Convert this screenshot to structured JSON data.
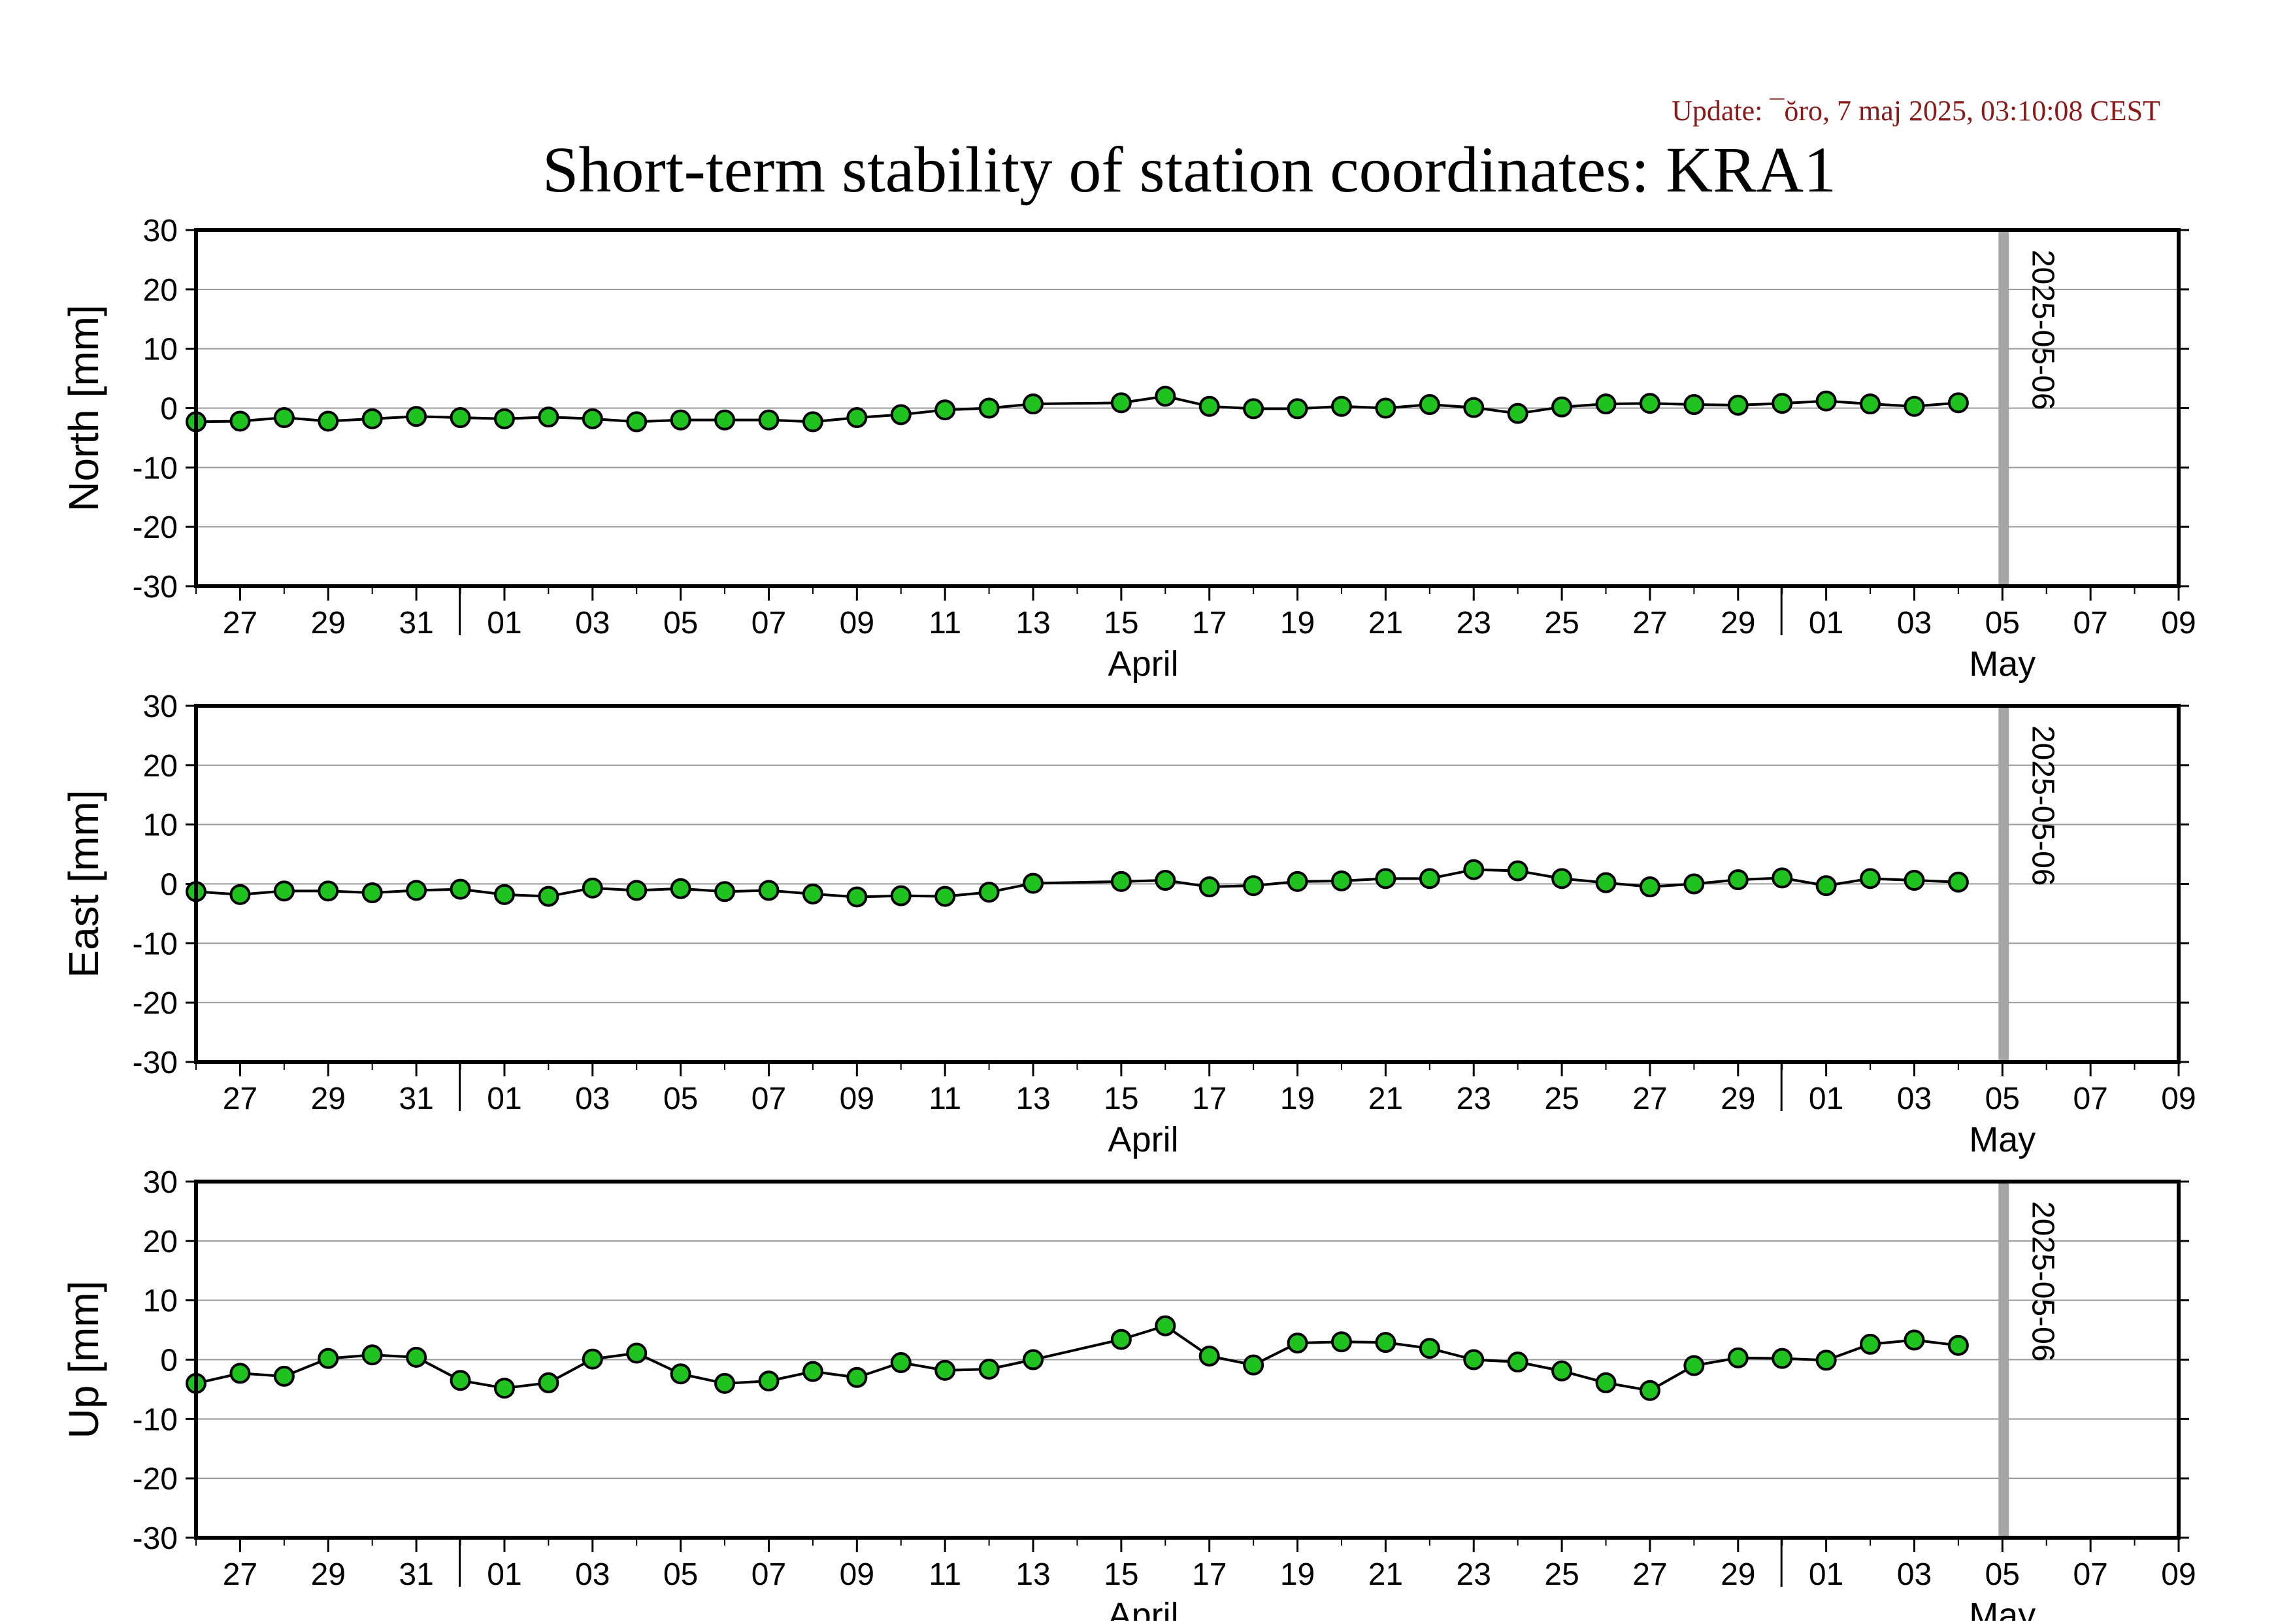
{
  "update_text": "Update: ¯ŏro, 7 maj 2025, 03:10:08 CEST",
  "title": "Short-term stability of station coordinates: KRA1",
  "colors": {
    "marker_fill": "#1fc21f",
    "marker_edge": "#000000",
    "line": "#000000",
    "gridline": "#999999",
    "current_day_bar": "#a6a6a6",
    "update_text": "#8b1a1a"
  },
  "chart_data": [
    {
      "type": "line",
      "ylabel": "North [mm]",
      "ylim": [
        -30,
        30
      ],
      "yticks": [
        30,
        20,
        10,
        0,
        -10,
        -20,
        -30
      ],
      "xlim": [
        "2025-03-26",
        "2025-05-10"
      ],
      "xtick_labels": [
        "27",
        "29",
        "31",
        "01",
        "03",
        "05",
        "07",
        "09",
        "11",
        "13",
        "15",
        "17",
        "19",
        "21",
        "23",
        "25",
        "27",
        "29",
        "01",
        "03",
        "05",
        "07",
        "09"
      ],
      "month_labels": [
        "April",
        "May"
      ],
      "grid": true,
      "marker_line": {
        "date": "2025-05-06",
        "label": "2025-05-06"
      },
      "x": [
        "2025-03-26",
        "2025-03-27",
        "2025-03-28",
        "2025-03-29",
        "2025-03-30",
        "2025-03-31",
        "2025-04-01",
        "2025-04-02",
        "2025-04-03",
        "2025-04-04",
        "2025-04-05",
        "2025-04-06",
        "2025-04-07",
        "2025-04-08",
        "2025-04-09",
        "2025-04-10",
        "2025-04-11",
        "2025-04-12",
        "2025-04-13",
        "2025-04-14",
        "2025-04-16",
        "2025-04-17",
        "2025-04-18",
        "2025-04-19",
        "2025-04-20",
        "2025-04-21",
        "2025-04-22",
        "2025-04-23",
        "2025-04-24",
        "2025-04-25",
        "2025-04-26",
        "2025-04-27",
        "2025-04-28",
        "2025-04-29",
        "2025-04-30",
        "2025-05-01",
        "2025-05-02",
        "2025-05-03",
        "2025-05-04",
        "2025-05-05"
      ],
      "values": [
        -2.3,
        -2.2,
        -1.6,
        -2.2,
        -1.8,
        -1.4,
        -1.6,
        -1.8,
        -1.5,
        -1.8,
        -2.3,
        -2.0,
        -2.0,
        -2.0,
        -2.3,
        -1.6,
        -1.1,
        -0.3,
        0.0,
        0.7,
        0.9,
        2.0,
        0.3,
        -0.1,
        -0.1,
        0.3,
        0.0,
        0.6,
        0.1,
        -0.9,
        0.2,
        0.7,
        0.8,
        0.6,
        0.5,
        0.8,
        1.2,
        0.7,
        0.3,
        0.9
      ]
    },
    {
      "type": "line",
      "ylabel": "East [mm]",
      "ylim": [
        -30,
        30
      ],
      "yticks": [
        30,
        20,
        10,
        0,
        -10,
        -20,
        -30
      ],
      "xlim": [
        "2025-03-26",
        "2025-05-10"
      ],
      "xtick_labels": [
        "27",
        "29",
        "31",
        "01",
        "03",
        "05",
        "07",
        "09",
        "11",
        "13",
        "15",
        "17",
        "19",
        "21",
        "23",
        "25",
        "27",
        "29",
        "01",
        "03",
        "05",
        "07",
        "09"
      ],
      "month_labels": [
        "April",
        "May"
      ],
      "grid": true,
      "marker_line": {
        "date": "2025-05-06",
        "label": "2025-05-06"
      },
      "x": [
        "2025-03-26",
        "2025-03-27",
        "2025-03-28",
        "2025-03-29",
        "2025-03-30",
        "2025-03-31",
        "2025-04-01",
        "2025-04-02",
        "2025-04-03",
        "2025-04-04",
        "2025-04-05",
        "2025-04-06",
        "2025-04-07",
        "2025-04-08",
        "2025-04-09",
        "2025-04-10",
        "2025-04-11",
        "2025-04-12",
        "2025-04-13",
        "2025-04-14",
        "2025-04-16",
        "2025-04-17",
        "2025-04-18",
        "2025-04-19",
        "2025-04-20",
        "2025-04-21",
        "2025-04-22",
        "2025-04-23",
        "2025-04-24",
        "2025-04-25",
        "2025-04-26",
        "2025-04-27",
        "2025-04-28",
        "2025-04-29",
        "2025-04-30",
        "2025-05-01",
        "2025-05-02",
        "2025-05-03",
        "2025-05-04",
        "2025-05-05"
      ],
      "values": [
        -1.3,
        -1.8,
        -1.2,
        -1.2,
        -1.5,
        -1.1,
        -0.9,
        -1.8,
        -2.1,
        -0.7,
        -1.1,
        -0.8,
        -1.3,
        -1.1,
        -1.7,
        -2.2,
        -2.0,
        -2.1,
        -1.4,
        0.1,
        0.4,
        0.6,
        -0.5,
        -0.3,
        0.4,
        0.5,
        0.9,
        0.9,
        2.4,
        2.2,
        0.9,
        0.2,
        -0.5,
        0.0,
        0.7,
        1.0,
        -0.3,
        0.9,
        0.6,
        0.3
      ]
    },
    {
      "type": "line",
      "ylabel": "Up [mm]",
      "ylim": [
        -30,
        30
      ],
      "yticks": [
        30,
        20,
        10,
        0,
        -10,
        -20,
        -30
      ],
      "xlim": [
        "2025-03-26",
        "2025-05-10"
      ],
      "xtick_labels": [
        "27",
        "29",
        "31",
        "01",
        "03",
        "05",
        "07",
        "09",
        "11",
        "13",
        "15",
        "17",
        "19",
        "21",
        "23",
        "25",
        "27",
        "29",
        "01",
        "03",
        "05",
        "07",
        "09"
      ],
      "month_labels": [
        "April",
        "May"
      ],
      "grid": true,
      "marker_line": {
        "date": "2025-05-06",
        "label": "2025-05-06"
      },
      "x": [
        "2025-03-26",
        "2025-03-27",
        "2025-03-28",
        "2025-03-29",
        "2025-03-30",
        "2025-03-31",
        "2025-04-01",
        "2025-04-02",
        "2025-04-03",
        "2025-04-04",
        "2025-04-05",
        "2025-04-06",
        "2025-04-07",
        "2025-04-08",
        "2025-04-09",
        "2025-04-10",
        "2025-04-11",
        "2025-04-12",
        "2025-04-13",
        "2025-04-14",
        "2025-04-16",
        "2025-04-17",
        "2025-04-18",
        "2025-04-19",
        "2025-04-20",
        "2025-04-21",
        "2025-04-22",
        "2025-04-23",
        "2025-04-24",
        "2025-04-25",
        "2025-04-26",
        "2025-04-27",
        "2025-04-28",
        "2025-04-29",
        "2025-04-30",
        "2025-05-01",
        "2025-05-02",
        "2025-05-03",
        "2025-05-04",
        "2025-05-05"
      ],
      "values": [
        -4.0,
        -2.3,
        -2.8,
        0.2,
        0.8,
        0.4,
        -3.5,
        -4.8,
        -3.9,
        0.1,
        1.1,
        -2.4,
        -4.0,
        -3.6,
        -2.0,
        -3.0,
        -0.5,
        -1.8,
        -1.6,
        0.0,
        3.4,
        5.7,
        0.6,
        -0.9,
        2.8,
        3.0,
        2.9,
        1.9,
        0.0,
        -0.4,
        -1.9,
        -3.9,
        -5.2,
        -1.0,
        0.3,
        0.2,
        -0.1,
        2.6,
        3.3,
        2.4
      ]
    }
  ]
}
